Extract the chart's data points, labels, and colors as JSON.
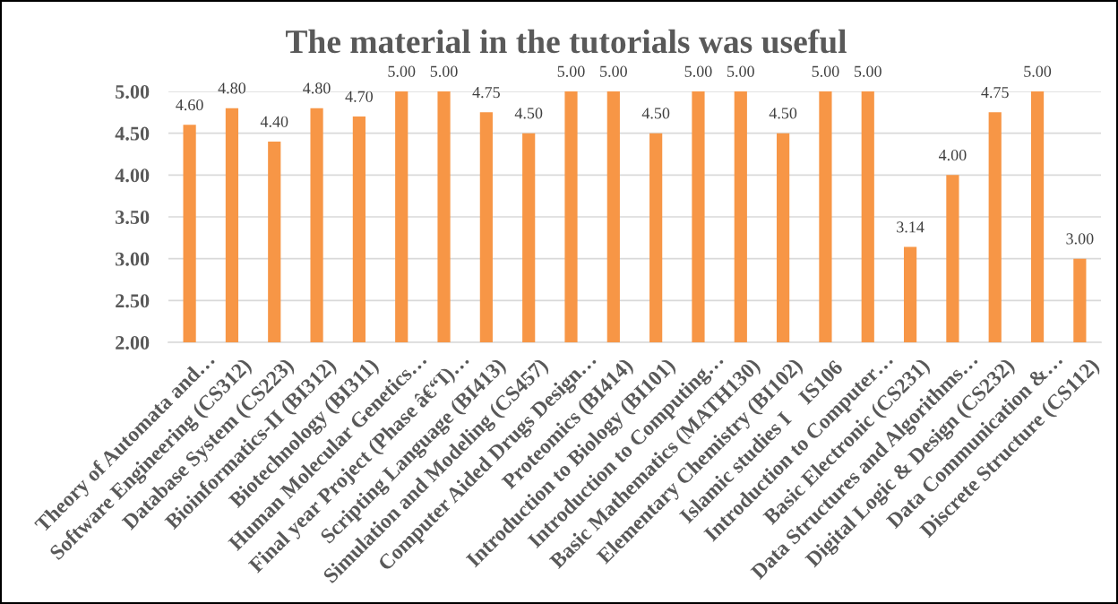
{
  "chart_data": {
    "type": "bar",
    "title": "The material in the tutorials was useful",
    "categories": [
      "Theory of Automata and…",
      "Software Engineering (CS312)",
      "Database System (CS223)",
      "Bioinformatics-II (BI312)",
      "Biotechnology (BI311)",
      "Human Molecular Genetics…",
      "Final year Project (Phase â€“I)…",
      "Scripting Language (BI413)",
      "Simulation and Modeling (CS457)",
      "Computer Aided Drugs Design…",
      "Proteomics (BI414)",
      "Introduction to Biology (BI101)",
      "Introduction to Computing…",
      "Basic Mathematics (MATH130)",
      "Elementary Chemistry (BI102)",
      "Islamic studies I    IS106",
      "Introduction to Computer…",
      "Basic Electronic (CS231)",
      "Data Structures and Algorithms…",
      "Digital Logic & Design (CS232)",
      "Data Communication &…",
      "Discrete Structure (CS112)"
    ],
    "values": [
      4.6,
      4.8,
      4.4,
      4.8,
      4.7,
      5.0,
      5.0,
      4.75,
      4.5,
      5.0,
      5.0,
      4.5,
      5.0,
      5.0,
      4.5,
      5.0,
      5.0,
      3.14,
      4.0,
      4.75,
      5.0,
      3.0
    ],
    "value_labels": [
      "4.60",
      "4.80",
      "4.40",
      "4.80",
      "4.70",
      "5.00",
      "5.00",
      "4.75",
      "4.50",
      "5.00",
      "5.00",
      "4.50",
      "5.00",
      "5.00",
      "4.50",
      "5.00",
      "5.00",
      "3.14",
      "4.00",
      "4.75",
      "5.00",
      "3.00"
    ],
    "color": "#f79646",
    "ylim": [
      2,
      5
    ],
    "yticks": [
      {
        "value": 2,
        "label": "2.00"
      },
      {
        "value": 2.5,
        "label": "2.50"
      },
      {
        "value": 3,
        "label": "3.00"
      },
      {
        "value": 3.5,
        "label": "3.50"
      },
      {
        "value": 4,
        "label": "4.00"
      },
      {
        "value": 4.5,
        "label": "4.50"
      },
      {
        "value": 5,
        "label": "5.00"
      }
    ],
    "grid": "y",
    "legend": false
  }
}
